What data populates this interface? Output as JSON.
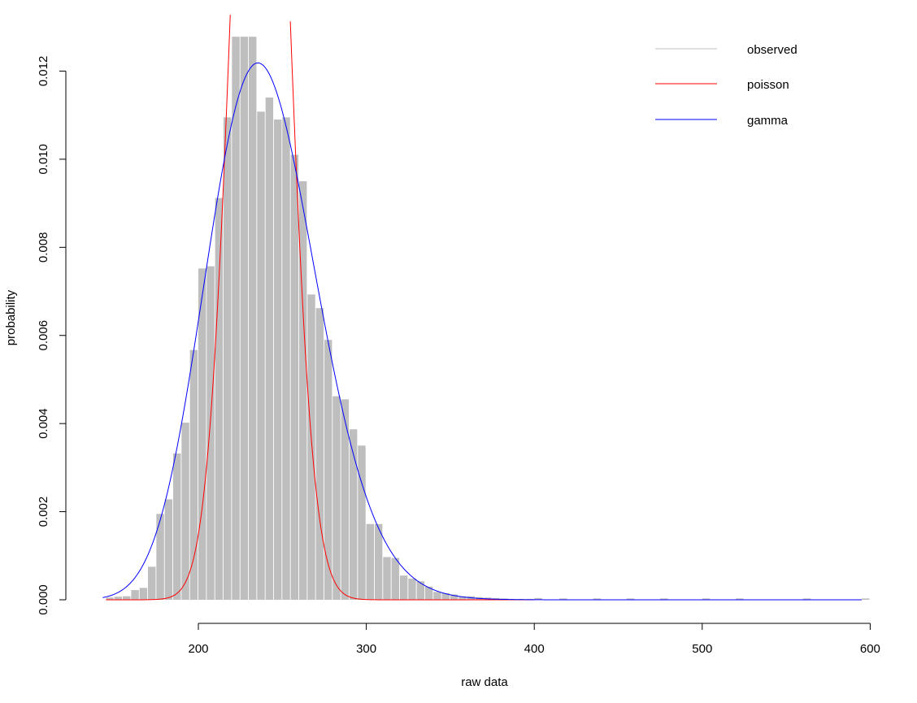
{
  "chart_data": {
    "type": "bar",
    "xlabel": "raw data",
    "ylabel": "probability",
    "xlim": [
      140,
      600
    ],
    "ylim": [
      0,
      0.0128
    ],
    "x_ticks": [
      "200",
      "300",
      "400",
      "500",
      "600"
    ],
    "y_ticks": [
      "0.000",
      "0.002",
      "0.004",
      "0.006",
      "0.008",
      "0.010",
      "0.012"
    ],
    "bin_width": 5,
    "grid": false,
    "legend_placement": "top-right",
    "colors": {
      "observed": "#bebebe",
      "poisson": "#ff0000",
      "gamma": "#0000ff",
      "axis": "#000000"
    },
    "series": [
      {
        "name": "observed",
        "bin_starts": [
          145,
          150,
          155,
          160,
          165,
          170,
          175,
          180,
          185,
          190,
          195,
          200,
          205,
          210,
          215,
          220,
          225,
          230,
          235,
          240,
          245,
          250,
          255,
          260,
          265,
          270,
          275,
          280,
          285,
          290,
          295,
          300,
          305,
          310,
          315,
          320,
          325,
          330,
          335,
          340,
          345,
          350,
          355,
          360,
          365,
          370,
          375,
          380,
          385,
          390,
          395,
          400,
          415,
          435,
          455,
          475,
          500,
          520,
          560,
          595
        ],
        "values": [
          5e-05,
          7e-05,
          8e-05,
          0.00022,
          0.00027,
          0.00075,
          0.00195,
          0.00228,
          0.00332,
          0.00402,
          0.00567,
          0.00752,
          0.00757,
          0.00912,
          0.01095,
          0.01278,
          0.01278,
          0.01278,
          0.01108,
          0.0114,
          0.0109,
          0.01095,
          0.0101,
          0.0095,
          0.00693,
          0.00662,
          0.0059,
          0.00462,
          0.00455,
          0.00387,
          0.0035,
          0.00172,
          0.00172,
          0.00097,
          0.00095,
          0.00055,
          0.00048,
          0.00042,
          0.0003,
          0.00018,
          0.00015,
          0.00012,
          8e-05,
          8e-05,
          6e-05,
          5e-05,
          4e-05,
          3e-05,
          2e-05,
          2e-05,
          2e-05,
          4e-05,
          3e-05,
          3e-05,
          3e-05,
          3e-05,
          3e-05,
          3e-05,
          3e-05,
          3e-05
        ]
      },
      {
        "name": "poisson",
        "distribution": "poisson",
        "lambda": 236.8,
        "x_range": [
          145,
          400
        ]
      },
      {
        "name": "gamma",
        "distribution": "gamma",
        "mean": 240,
        "sd": 33,
        "x_range": [
          143,
          595
        ]
      }
    ]
  }
}
